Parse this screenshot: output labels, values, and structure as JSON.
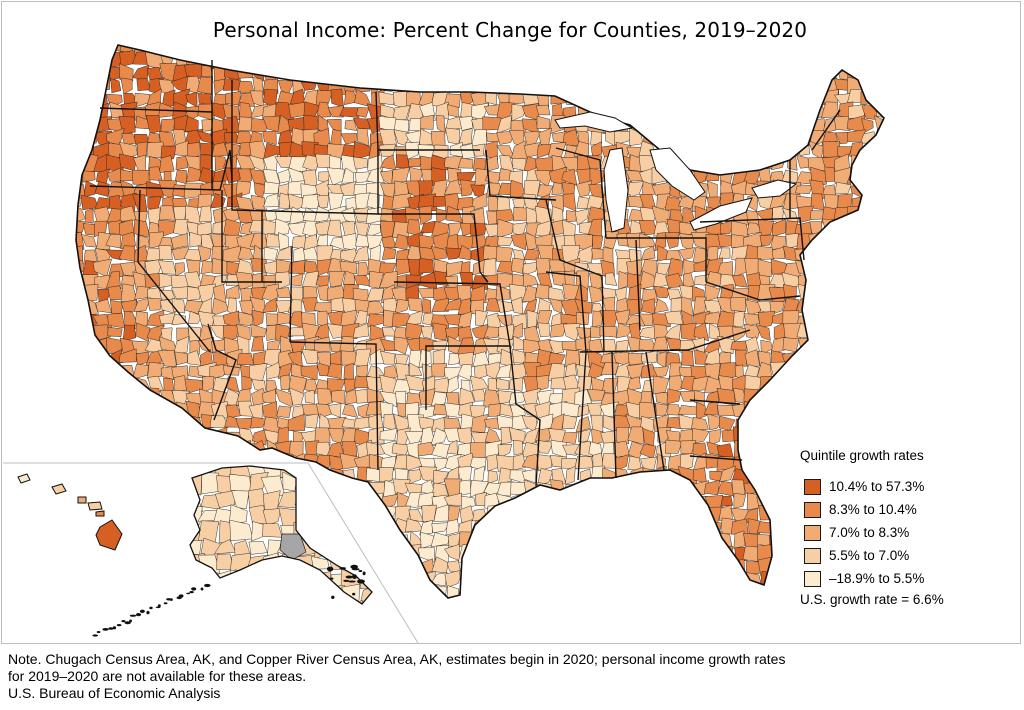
{
  "title": "Personal Income: Percent Change for Counties, 2019–2020",
  "legend": {
    "title": "Quintile growth rates",
    "items": [
      {
        "label": "10.4% to 57.3%",
        "color": "#d65f23"
      },
      {
        "label": "8.3% to 10.4%",
        "color": "#e88a4c"
      },
      {
        "label": "7.0% to 8.3%",
        "color": "#f1ac76"
      },
      {
        "label": "5.5% to 7.0%",
        "color": "#f8cfa4"
      },
      {
        "label": "–18.9% to 5.5%",
        "color": "#fdebcf"
      }
    ],
    "us_rate": "U.S. growth rate = 6.6%"
  },
  "no_data_color": "#a6a6a6",
  "notes": {
    "line1": "Note. Chugach Census Area, AK, and Copper River Census Area, AK, estimates begin in 2020; personal income growth rates",
    "line2": "for 2019–2020 are not available for these areas.",
    "source": "U.S. Bureau of Economic Analysis"
  }
}
